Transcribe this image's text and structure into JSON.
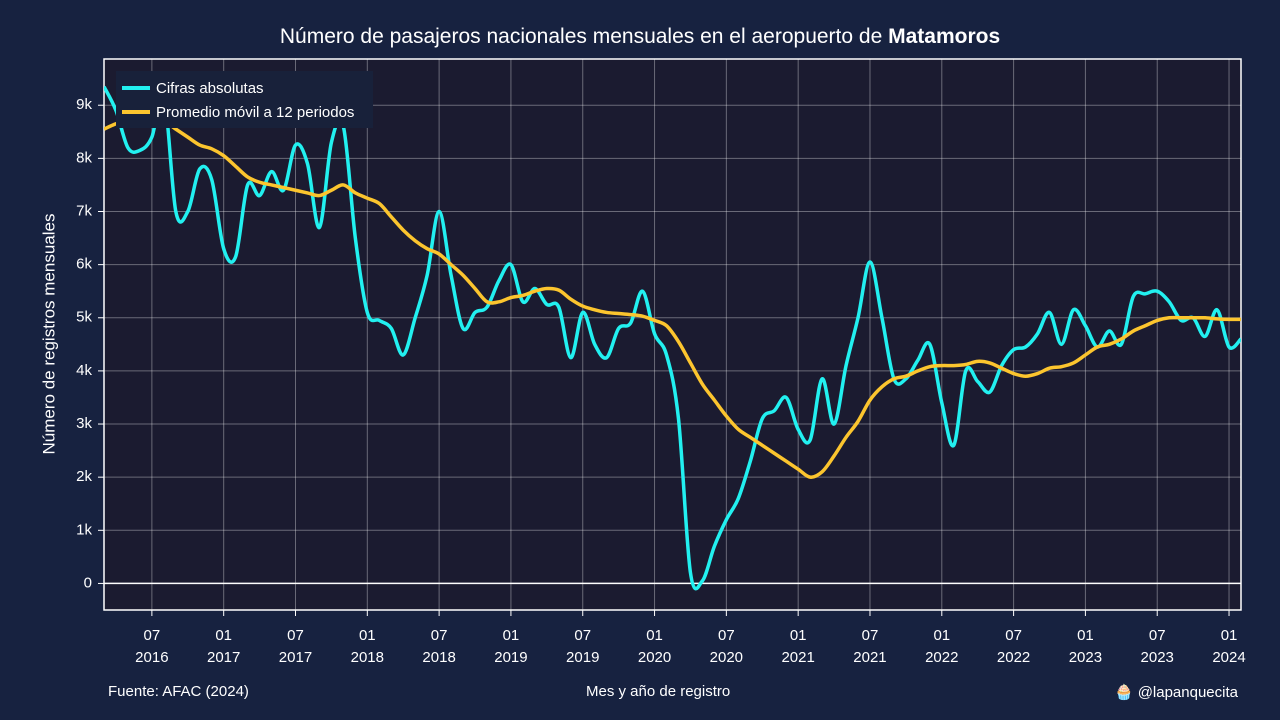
{
  "chart_data": {
    "type": "line",
    "title": [
      "Número de pasajeros nacionales mensuales en el aeropuerto de ",
      "Matamoros"
    ],
    "x_label": "Mes y año de registro",
    "y_label": "Número de registros mensuales",
    "source": "Fuente: AFAC (2024)",
    "credit": "🧁 @lapanquecita",
    "x": [
      "2016-03",
      "2016-04",
      "2016-05",
      "2016-06",
      "2016-07",
      "2016-08",
      "2016-09",
      "2016-10",
      "2016-11",
      "2016-12",
      "2017-01",
      "2017-02",
      "2017-03",
      "2017-04",
      "2017-05",
      "2017-06",
      "2017-07",
      "2017-08",
      "2017-09",
      "2017-10",
      "2017-11",
      "2017-12",
      "2018-01",
      "2018-02",
      "2018-03",
      "2018-04",
      "2018-05",
      "2018-06",
      "2018-07",
      "2018-08",
      "2018-09",
      "2018-10",
      "2018-11",
      "2018-12",
      "2019-01",
      "2019-02",
      "2019-03",
      "2019-04",
      "2019-05",
      "2019-06",
      "2019-07",
      "2019-08",
      "2019-09",
      "2019-10",
      "2019-11",
      "2019-12",
      "2020-01",
      "2020-02",
      "2020-03",
      "2020-04",
      "2020-05",
      "2020-06",
      "2020-07",
      "2020-08",
      "2020-09",
      "2020-10",
      "2020-11",
      "2020-12",
      "2021-01",
      "2021-02",
      "2021-03",
      "2021-04",
      "2021-05",
      "2021-06",
      "2021-07",
      "2021-08",
      "2021-09",
      "2021-10",
      "2021-11",
      "2021-12",
      "2022-01",
      "2022-02",
      "2022-03",
      "2022-04",
      "2022-05",
      "2022-06",
      "2022-07",
      "2022-08",
      "2022-09",
      "2022-10",
      "2022-11",
      "2022-12",
      "2023-01",
      "2023-02",
      "2023-03",
      "2023-04",
      "2023-05",
      "2023-06",
      "2023-07",
      "2023-08",
      "2023-09",
      "2023-10",
      "2023-11",
      "2023-12",
      "2024-01",
      "2024-02"
    ],
    "series": [
      {
        "name": "Cifras absolutas",
        "color": "#22f0f0",
        "values": [
          9350,
          8900,
          8200,
          8150,
          8400,
          9200,
          7000,
          7000,
          7800,
          7600,
          6300,
          6150,
          7500,
          7300,
          7750,
          7400,
          8250,
          7900,
          6700,
          8300,
          8600,
          6500,
          5100,
          4950,
          4800,
          4300,
          5000,
          5800,
          7000,
          5800,
          4800,
          5100,
          5200,
          5700,
          6000,
          5300,
          5550,
          5250,
          5200,
          4250,
          5100,
          4500,
          4250,
          4800,
          4900,
          5500,
          4700,
          4300,
          3100,
          200,
          50,
          700,
          1200,
          1600,
          2300,
          3100,
          3250,
          3500,
          2900,
          2700,
          3850,
          3000,
          4100,
          5000,
          6050,
          5000,
          3850,
          3850,
          4200,
          4500,
          3400,
          2600,
          4000,
          3800,
          3600,
          4100,
          4400,
          4450,
          4700,
          5100,
          4500,
          5150,
          4850,
          4450,
          4750,
          4500,
          5400,
          5450,
          5500,
          5300,
          4950,
          5000,
          4650,
          5150,
          4450,
          4600
        ]
      },
      {
        "name": "Promedio móvil a 12 periodos",
        "color": "#fcc52e",
        "values": [
          8550,
          8650,
          8700,
          8700,
          8650,
          8700,
          8550,
          8400,
          8250,
          8180,
          8050,
          7850,
          7650,
          7550,
          7500,
          7450,
          7400,
          7350,
          7300,
          7400,
          7500,
          7350,
          7250,
          7150,
          6900,
          6650,
          6450,
          6300,
          6200,
          6000,
          5800,
          5550,
          5300,
          5300,
          5380,
          5420,
          5500,
          5550,
          5520,
          5350,
          5220,
          5150,
          5100,
          5080,
          5060,
          5030,
          4950,
          4850,
          4550,
          4150,
          3750,
          3450,
          3150,
          2900,
          2750,
          2600,
          2450,
          2300,
          2150,
          2000,
          2100,
          2400,
          2750,
          3050,
          3450,
          3700,
          3850,
          3900,
          4000,
          4080,
          4100,
          4100,
          4120,
          4180,
          4150,
          4050,
          3950,
          3900,
          3950,
          4050,
          4080,
          4150,
          4300,
          4450,
          4500,
          4600,
          4750,
          4850,
          4950,
          5000,
          5000,
          5000,
          5000,
          4980,
          4970,
          4970
        ]
      }
    ],
    "xlim": [
      "2016-03",
      "2024-02"
    ],
    "xticks": [
      {
        "value": "2016-07",
        "label": "07\n2016"
      },
      {
        "value": "2017-01",
        "label": "01\n2017"
      },
      {
        "value": "2017-07",
        "label": "07\n2017"
      },
      {
        "value": "2018-01",
        "label": "01\n2018"
      },
      {
        "value": "2018-07",
        "label": "07\n2018"
      },
      {
        "value": "2019-01",
        "label": "01\n2019"
      },
      {
        "value": "2019-07",
        "label": "07\n2019"
      },
      {
        "value": "2020-01",
        "label": "01\n2020"
      },
      {
        "value": "2020-07",
        "label": "07\n2020"
      },
      {
        "value": "2021-01",
        "label": "01\n2021"
      },
      {
        "value": "2021-07",
        "label": "07\n2021"
      },
      {
        "value": "2022-01",
        "label": "01\n2022"
      },
      {
        "value": "2022-07",
        "label": "07\n2022"
      },
      {
        "value": "2023-01",
        "label": "01\n2023"
      },
      {
        "value": "2023-07",
        "label": "07\n2023"
      },
      {
        "value": "2024-01",
        "label": "01\n2024"
      }
    ],
    "ylim": [
      -500,
      9870
    ],
    "yticks": [
      0,
      {
        "value": 1000,
        "label": "1k"
      },
      {
        "value": 2000,
        "label": "2k"
      },
      {
        "value": 3000,
        "label": "3k"
      },
      {
        "value": 4000,
        "label": "4k"
      },
      {
        "value": 5000,
        "label": "5k"
      },
      {
        "value": 6000,
        "label": "6k"
      },
      {
        "value": 7000,
        "label": "7k"
      },
      {
        "value": 8000,
        "label": "8k"
      },
      {
        "value": 9000,
        "label": "9k"
      }
    ],
    "grid": true,
    "legend": "top-left"
  }
}
